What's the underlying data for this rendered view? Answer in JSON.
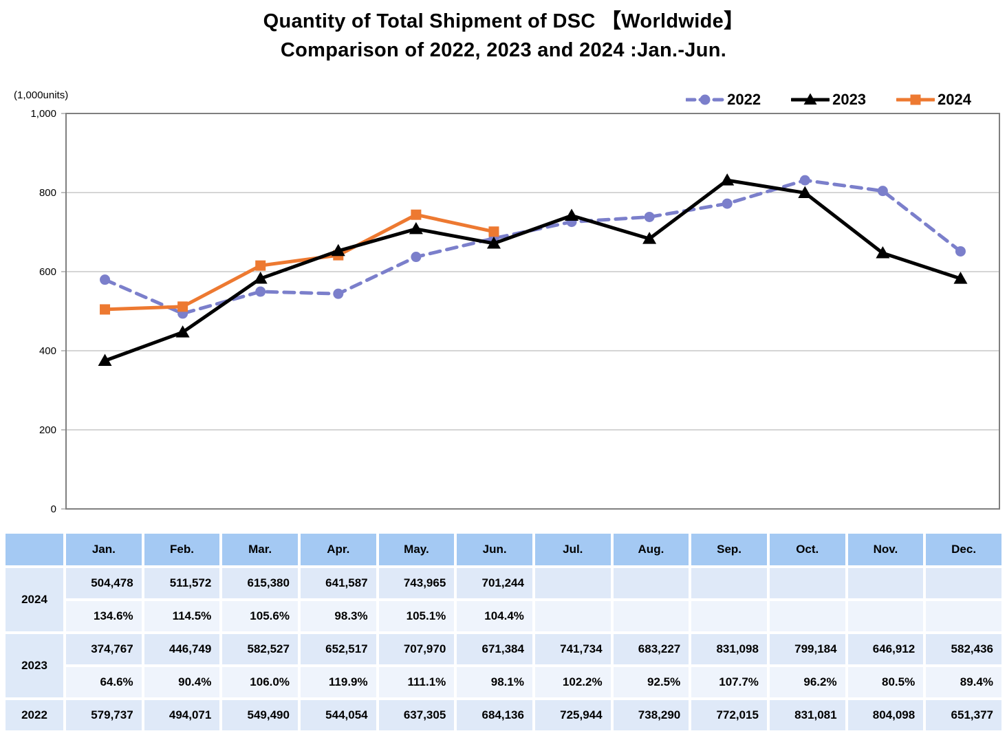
{
  "title": {
    "line1": "Quantity of Total Shipment of DSC 【Worldwide】",
    "line2": "Comparison of 2022, 2023 and 2024 :Jan.-Jun."
  },
  "unit_label": "(1,000units)",
  "chart_data": {
    "type": "line",
    "title": "Quantity of Total Shipment of DSC Worldwide, Comparison of 2022, 2023 and 2024 Jan.-Jun.",
    "xlabel": "",
    "ylabel": "(1,000units)",
    "categories": [
      "Jan.",
      "Feb.",
      "Mar.",
      "Apr.",
      "May.",
      "Jun.",
      "Jul.",
      "Aug.",
      "Sep.",
      "Oct.",
      "Nov.",
      "Dec."
    ],
    "ylim": [
      0,
      1000
    ],
    "y_ticks": [
      0,
      200,
      400,
      600,
      800,
      1000
    ],
    "y_tick_labels": [
      "0",
      "200",
      "400",
      "600",
      "800",
      "1,000"
    ],
    "grid": true,
    "legend_position": "top-right",
    "series": [
      {
        "name": "2022",
        "color": "#7B7FCB",
        "line_style": "dashed",
        "marker": "circle",
        "values": [
          579.737,
          494.071,
          549.49,
          544.054,
          637.305,
          684.136,
          725.944,
          738.29,
          772.015,
          831.081,
          804.098,
          651.377
        ]
      },
      {
        "name": "2023",
        "color": "#000000",
        "line_style": "solid",
        "marker": "triangle",
        "values": [
          374.767,
          446.749,
          582.527,
          652.517,
          707.97,
          671.384,
          741.734,
          683.227,
          831.098,
          799.184,
          646.912,
          582.436
        ]
      },
      {
        "name": "2024",
        "color": "#ED7931",
        "line_style": "solid",
        "marker": "square",
        "values": [
          504.478,
          511.572,
          615.38,
          641.587,
          743.965,
          701.244
        ]
      }
    ]
  },
  "table": {
    "col_headers": [
      "",
      "Jan.",
      "Feb.",
      "Mar.",
      "Apr.",
      "May.",
      "Jun.",
      "Jul.",
      "Aug.",
      "Sep.",
      "Oct.",
      "Nov.",
      "Dec."
    ],
    "row_groups": [
      {
        "label": "2024",
        "values": [
          "504,478",
          "511,572",
          "615,380",
          "641,587",
          "743,965",
          "701,244",
          "",
          "",
          "",
          "",
          "",
          ""
        ],
        "pct": [
          "134.6%",
          "114.5%",
          "105.6%",
          "98.3%",
          "105.1%",
          "104.4%",
          "",
          "",
          "",
          "",
          "",
          ""
        ]
      },
      {
        "label": "2023",
        "values": [
          "374,767",
          "446,749",
          "582,527",
          "652,517",
          "707,970",
          "671,384",
          "741,734",
          "683,227",
          "831,098",
          "799,184",
          "646,912",
          "582,436"
        ],
        "pct": [
          "64.6%",
          "90.4%",
          "106.0%",
          "119.9%",
          "111.1%",
          "98.1%",
          "102.2%",
          "92.5%",
          "107.7%",
          "96.2%",
          "80.5%",
          "89.4%"
        ]
      },
      {
        "label": "2022",
        "values": [
          "579,737",
          "494,071",
          "549,490",
          "544,054",
          "637,305",
          "684,136",
          "725,944",
          "738,290",
          "772,015",
          "831,081",
          "804,098",
          "651,377"
        ]
      }
    ]
  },
  "colors": {
    "header_bg": "#A4C9F3",
    "value_row_bg": "#DFE9F8",
    "pct_row_bg": "#EFF4FC",
    "year_cell_bg": "#DEE9F8",
    "grid_line": "#ABABAB",
    "axis_border": "#7F7F7F"
  }
}
